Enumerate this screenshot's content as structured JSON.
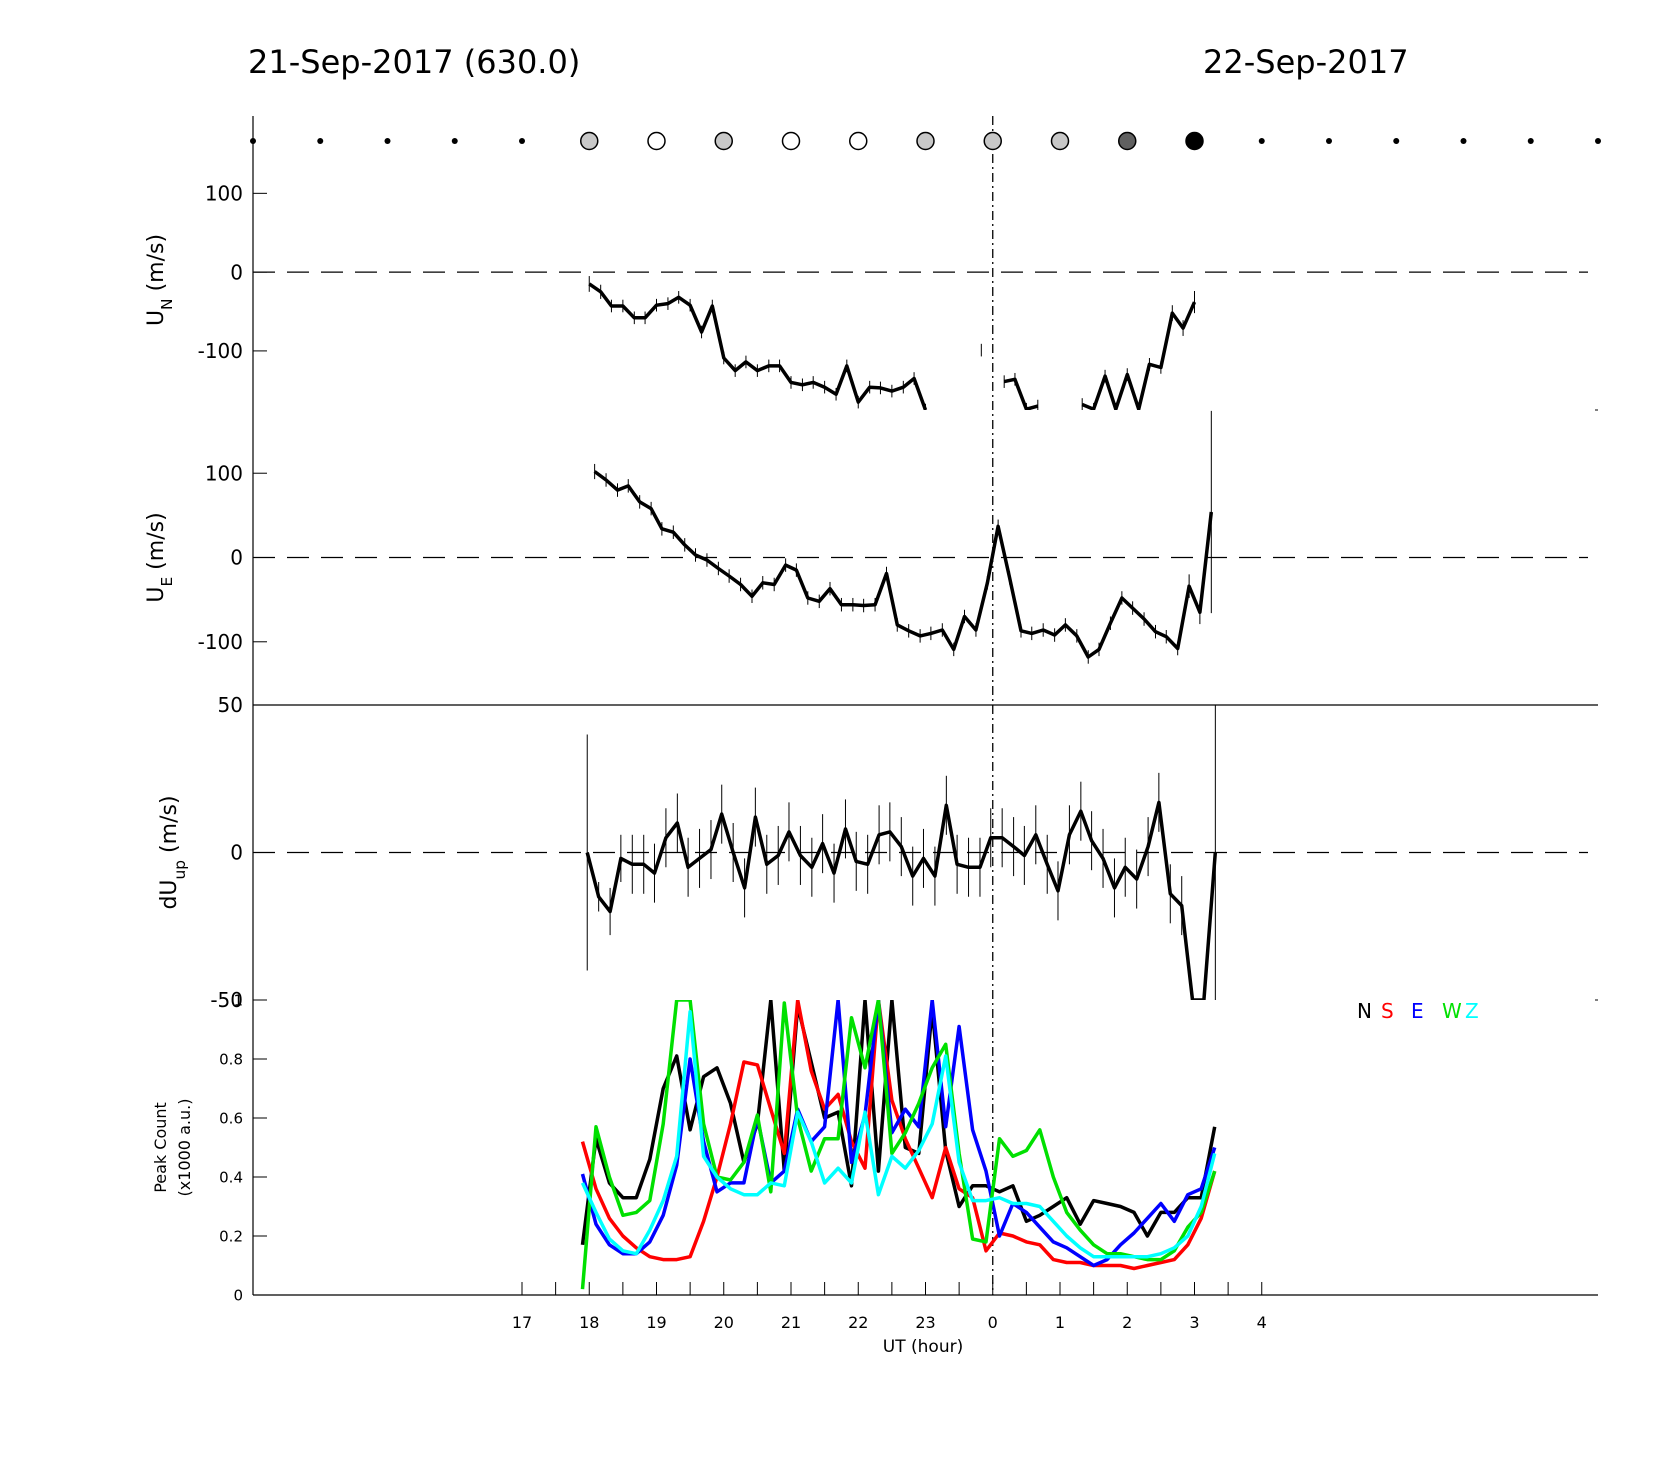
{
  "header": {
    "left_date": "21-Sep-2017 (630.0)",
    "right_date": "22-Sep-2017"
  },
  "colors": {
    "N": "#000000",
    "S": "#ff0000",
    "E": "#0000ff",
    "W": "#00e000",
    "Z": "#00ffff"
  },
  "chart_data": [
    {
      "type": "scatter",
      "title": "",
      "x_range": [
        13,
        33
      ],
      "moon_markers": [
        {
          "t": 13,
          "style": "dot"
        },
        {
          "t": 14,
          "style": "dot"
        },
        {
          "t": 15,
          "style": "dot"
        },
        {
          "t": 16,
          "style": "dot"
        },
        {
          "t": 17,
          "style": "dot"
        },
        {
          "t": 18,
          "style": "lightgray"
        },
        {
          "t": 19,
          "style": "white"
        },
        {
          "t": 20,
          "style": "lightgray"
        },
        {
          "t": 21,
          "style": "white"
        },
        {
          "t": 22,
          "style": "white"
        },
        {
          "t": 23,
          "style": "lightgray"
        },
        {
          "t": 24,
          "style": "lightgray"
        },
        {
          "t": 25,
          "style": "lightgray"
        },
        {
          "t": 26,
          "style": "darkgray"
        },
        {
          "t": 27,
          "style": "black"
        },
        {
          "t": 28,
          "style": "dot"
        },
        {
          "t": 29,
          "style": "dot"
        },
        {
          "t": 30,
          "style": "dot"
        },
        {
          "t": 31,
          "style": "dot"
        },
        {
          "t": 32,
          "style": "dot"
        },
        {
          "t": 33,
          "style": "dot"
        }
      ]
    },
    {
      "type": "line",
      "ylabel": "U",
      "ylabel_sub": "N",
      "ylabel_unit": " (m/s)",
      "ylim": [
        -175,
        155
      ],
      "yticks": [
        "100",
        "0",
        "-100"
      ],
      "ytick_values": [
        100,
        0,
        -100
      ],
      "x": [
        18.0,
        18.17,
        18.33,
        18.5,
        18.67,
        18.83,
        19.0,
        19.17,
        19.33,
        19.5,
        19.67,
        19.83,
        20.0,
        20.17,
        20.33,
        20.5,
        20.67,
        20.83,
        21.0,
        21.17,
        21.33,
        21.5,
        21.67,
        21.83,
        22.0,
        22.17,
        22.33,
        22.5,
        22.67,
        22.83,
        23.0,
        23.17,
        23.33,
        23.5,
        23.67,
        23.83,
        24.0,
        24.17,
        24.33,
        24.5,
        24.67,
        24.83,
        25.0,
        25.17,
        25.33,
        25.5,
        25.67,
        25.83,
        26.0,
        26.17,
        26.33,
        26.5,
        26.67,
        26.83,
        27.0,
        27.17
      ],
      "values": [
        -15,
        -25,
        -43,
        -43,
        -58,
        -58,
        -42,
        -40,
        -32,
        -42,
        -76,
        -43,
        -109,
        -125,
        -114,
        -125,
        -119,
        -119,
        -140,
        -143,
        -140,
        -146,
        -155,
        -119,
        -165,
        -146,
        -147,
        -151,
        -146,
        -135,
        -175,
        null,
        null,
        null,
        null,
        -99,
        null,
        -139,
        -136,
        -174,
        -170,
        null,
        null,
        null,
        -168,
        -174,
        -132,
        -174,
        -130,
        -174,
        -117,
        -121,
        -52,
        -71,
        -38,
        null
      ],
      "err": [
        10,
        9,
        8,
        8,
        8,
        8,
        8,
        8,
        8,
        8,
        8,
        8,
        8,
        8,
        8,
        8,
        8,
        8,
        8,
        8,
        8,
        8,
        8,
        8,
        8,
        8,
        8,
        8,
        8,
        8,
        8,
        0,
        0,
        0,
        0,
        8,
        0,
        8,
        8,
        8,
        8,
        0,
        0,
        0,
        8,
        8,
        8,
        8,
        8,
        8,
        8,
        8,
        10,
        10,
        14,
        0
      ]
    },
    {
      "type": "line",
      "ylabel": "U",
      "ylabel_sub": "E",
      "ylabel_unit": " (m/s)",
      "ylim": [
        -175,
        175
      ],
      "yticks": [
        "100",
        "0",
        "-100"
      ],
      "ytick_values": [
        100,
        0,
        -100
      ],
      "x": [
        18.08,
        18.25,
        18.42,
        18.58,
        18.75,
        18.92,
        19.08,
        19.25,
        19.42,
        19.58,
        19.75,
        19.92,
        20.08,
        20.25,
        20.42,
        20.58,
        20.75,
        20.92,
        21.08,
        21.25,
        21.42,
        21.58,
        21.75,
        21.92,
        22.08,
        22.25,
        22.42,
        22.58,
        22.75,
        22.92,
        23.08,
        23.25,
        23.42,
        23.58,
        23.75,
        23.92,
        24.08,
        24.25,
        24.42,
        24.58,
        24.75,
        24.92,
        25.08,
        25.25,
        25.42,
        25.58,
        25.75,
        25.92,
        26.08,
        26.25,
        26.42,
        26.58,
        26.75,
        26.92,
        27.08,
        27.25
      ],
      "values": [
        102,
        92,
        80,
        85,
        66,
        58,
        34,
        30,
        15,
        3,
        -3,
        -13,
        -22,
        -32,
        -46,
        -30,
        -32,
        -9,
        -15,
        -48,
        -52,
        -37,
        -56,
        -56,
        -57,
        -56,
        -19,
        -80,
        -87,
        -93,
        -90,
        -86,
        -109,
        -70,
        -86,
        -30,
        37,
        -24,
        -87,
        -90,
        -86,
        -92,
        -80,
        -93,
        -118,
        -109,
        -78,
        -48,
        -60,
        -73,
        -88,
        -94,
        -108,
        -34,
        -65,
        54
      ],
      "err": [
        9,
        8,
        8,
        8,
        8,
        8,
        8,
        8,
        8,
        8,
        8,
        8,
        8,
        8,
        8,
        8,
        8,
        8,
        8,
        8,
        8,
        8,
        8,
        8,
        8,
        8,
        8,
        8,
        8,
        8,
        8,
        8,
        8,
        8,
        8,
        8,
        8,
        8,
        8,
        8,
        8,
        8,
        8,
        8,
        8,
        8,
        8,
        8,
        8,
        8,
        8,
        8,
        8,
        14,
        14,
        120
      ]
    },
    {
      "type": "line",
      "ylabel": "dU",
      "ylabel_sub": "up",
      "ylabel_unit": " (m/s)",
      "ylim": [
        -50,
        50
      ],
      "yticks": [
        "50",
        "0",
        "-50"
      ],
      "ytick_values": [
        50,
        0,
        -50
      ],
      "x": [
        17.97,
        18.14,
        18.31,
        18.47,
        18.64,
        18.81,
        18.97,
        19.14,
        19.31,
        19.47,
        19.64,
        19.81,
        19.97,
        20.14,
        20.31,
        20.47,
        20.64,
        20.81,
        20.97,
        21.14,
        21.31,
        21.47,
        21.64,
        21.81,
        21.97,
        22.14,
        22.31,
        22.47,
        22.64,
        22.81,
        22.97,
        23.14,
        23.31,
        23.47,
        23.64,
        23.81,
        23.97,
        24.14,
        24.31,
        24.47,
        24.64,
        24.81,
        24.97,
        25.14,
        25.31,
        25.47,
        25.64,
        25.81,
        25.97,
        26.14,
        26.31,
        26.47,
        26.64,
        26.81,
        26.97,
        27.14,
        27.31
      ],
      "values": [
        0,
        -15,
        -20,
        -2,
        -4,
        -4,
        -7,
        5,
        10,
        -5,
        -2,
        1,
        13,
        0,
        -12,
        12,
        -4,
        -1,
        7,
        -1,
        -5,
        3,
        -7,
        8,
        -3,
        -4,
        6,
        7,
        2,
        -8,
        -2,
        -8,
        16,
        -4,
        -5,
        -5,
        5,
        5,
        2,
        -1,
        6,
        -4,
        -13,
        6,
        14,
        4,
        -2,
        -12,
        -5,
        -9,
        2,
        17,
        -14,
        -18,
        -50,
        -50,
        0
      ],
      "err": [
        40,
        5,
        8,
        8,
        10,
        10,
        10,
        10,
        10,
        10,
        10,
        10,
        10,
        10,
        10,
        10,
        10,
        10,
        10,
        10,
        10,
        10,
        10,
        10,
        10,
        10,
        10,
        10,
        10,
        10,
        10,
        10,
        10,
        10,
        10,
        10,
        10,
        10,
        10,
        10,
        10,
        10,
        10,
        10,
        10,
        10,
        10,
        10,
        10,
        10,
        10,
        10,
        10,
        10,
        0,
        0,
        50
      ]
    },
    {
      "type": "line",
      "ylabel": "Peak Count",
      "ylabel2": "(x1000 a.u.)",
      "ylim": [
        0,
        1.0
      ],
      "yticks": [
        "1",
        "0.8",
        "0.6",
        "0.4",
        "0.2",
        "0"
      ],
      "ytick_values": [
        1,
        0.8,
        0.6,
        0.4,
        0.2,
        0
      ],
      "xlabel": "UT (hour)",
      "xticks": [
        "17",
        "18",
        "19",
        "20",
        "21",
        "22",
        "23",
        "0",
        "1",
        "2",
        "3",
        "4"
      ],
      "xtick_values": [
        17,
        18,
        19,
        20,
        21,
        22,
        23,
        24,
        25,
        26,
        27,
        28
      ],
      "legend": [
        "N",
        "S",
        "E",
        "W",
        "Z"
      ],
      "legend_position": "top-right",
      "series": [
        {
          "key": "N",
          "x": [
            17.9,
            18.1,
            18.3,
            18.5,
            18.7,
            18.9,
            19.1,
            19.3,
            19.5,
            19.7,
            19.9,
            20.1,
            20.3,
            20.5,
            20.7,
            20.9,
            21.1,
            21.3,
            21.5,
            21.7,
            21.9,
            22.1,
            22.3,
            22.5,
            22.7,
            22.9,
            23.1,
            23.3,
            23.5,
            23.7,
            23.9,
            24.1,
            24.3,
            24.5,
            24.7,
            24.9,
            25.1,
            25.3,
            25.5,
            25.7,
            25.9,
            26.1,
            26.3,
            26.5,
            26.7,
            26.9,
            27.1,
            27.3
          ],
          "values": [
            0.17,
            0.53,
            0.38,
            0.33,
            0.33,
            0.46,
            0.7,
            0.81,
            0.56,
            0.74,
            0.77,
            0.65,
            0.45,
            0.58,
            1.0,
            0.42,
            0.98,
            0.79,
            0.6,
            0.62,
            0.37,
            1.0,
            0.42,
            1.0,
            0.5,
            0.48,
            0.97,
            0.49,
            0.3,
            0.37,
            0.37,
            0.35,
            0.37,
            0.25,
            0.27,
            0.3,
            0.33,
            0.24,
            0.32,
            0.31,
            0.3,
            0.28,
            0.2,
            0.28,
            0.28,
            0.33,
            0.33,
            0.57
          ]
        },
        {
          "key": "S",
          "x": [
            17.9,
            18.1,
            18.3,
            18.5,
            18.7,
            18.9,
            19.1,
            19.3,
            19.5,
            19.7,
            19.9,
            20.1,
            20.3,
            20.5,
            20.7,
            20.9,
            21.1,
            21.3,
            21.5,
            21.7,
            21.9,
            22.1,
            22.3,
            22.5,
            22.7,
            22.9,
            23.1,
            23.3,
            23.5,
            23.7,
            23.9,
            24.1,
            24.3,
            24.5,
            24.7,
            24.9,
            25.1,
            25.3,
            25.5,
            25.7,
            25.9,
            26.1,
            26.3,
            26.5,
            26.7,
            26.9,
            27.1,
            27.3
          ],
          "values": [
            0.52,
            0.36,
            0.26,
            0.2,
            0.16,
            0.13,
            0.12,
            0.12,
            0.13,
            0.25,
            0.4,
            0.58,
            0.79,
            0.78,
            0.63,
            0.48,
            1.0,
            0.76,
            0.63,
            0.68,
            0.52,
            0.43,
            1.0,
            0.66,
            0.53,
            0.43,
            0.33,
            0.5,
            0.36,
            0.33,
            0.15,
            0.21,
            0.2,
            0.18,
            0.17,
            0.12,
            0.11,
            0.11,
            0.1,
            0.1,
            0.1,
            0.09,
            0.1,
            0.11,
            0.12,
            0.17,
            0.26,
            0.42
          ]
        },
        {
          "key": "E",
          "x": [
            17.9,
            18.1,
            18.3,
            18.5,
            18.7,
            18.9,
            19.1,
            19.3,
            19.5,
            19.7,
            19.9,
            20.1,
            20.3,
            20.5,
            20.7,
            20.9,
            21.1,
            21.3,
            21.5,
            21.7,
            21.9,
            22.1,
            22.3,
            22.5,
            22.7,
            22.9,
            23.1,
            23.3,
            23.5,
            23.7,
            23.9,
            24.1,
            24.3,
            24.5,
            24.7,
            24.9,
            25.1,
            25.3,
            25.5,
            25.7,
            25.9,
            26.1,
            26.3,
            26.5,
            26.7,
            26.9,
            27.1,
            27.3
          ],
          "values": [
            0.41,
            0.24,
            0.17,
            0.14,
            0.14,
            0.18,
            0.27,
            0.44,
            0.8,
            0.52,
            0.35,
            0.38,
            0.38,
            0.6,
            0.38,
            0.42,
            0.63,
            0.52,
            0.57,
            1.0,
            0.45,
            0.61,
            1.0,
            0.55,
            0.63,
            0.57,
            1.0,
            0.57,
            0.91,
            0.56,
            0.42,
            0.2,
            0.31,
            0.28,
            0.23,
            0.18,
            0.16,
            0.13,
            0.1,
            0.12,
            0.17,
            0.21,
            0.26,
            0.31,
            0.25,
            0.34,
            0.36,
            0.5
          ]
        },
        {
          "key": "W",
          "x": [
            17.9,
            18.1,
            18.3,
            18.5,
            18.7,
            18.9,
            19.1,
            19.3,
            19.5,
            19.7,
            19.9,
            20.1,
            20.3,
            20.5,
            20.7,
            20.9,
            21.1,
            21.3,
            21.5,
            21.7,
            21.9,
            22.1,
            22.3,
            22.5,
            22.7,
            22.9,
            23.1,
            23.3,
            23.5,
            23.7,
            23.9,
            24.1,
            24.3,
            24.5,
            24.7,
            24.9,
            25.1,
            25.3,
            25.5,
            25.7,
            25.9,
            26.1,
            26.3,
            26.5,
            26.7,
            26.9,
            27.1,
            27.3
          ],
          "values": [
            0.02,
            0.57,
            0.4,
            0.27,
            0.28,
            0.32,
            0.58,
            1.0,
            1.0,
            0.58,
            0.4,
            0.39,
            0.45,
            0.61,
            0.35,
            0.99,
            0.6,
            0.42,
            0.53,
            0.53,
            0.94,
            0.77,
            1.0,
            0.48,
            0.55,
            0.65,
            0.77,
            0.85,
            0.48,
            0.19,
            0.18,
            0.53,
            0.47,
            0.49,
            0.56,
            0.4,
            0.28,
            0.22,
            0.17,
            0.14,
            0.14,
            0.13,
            0.12,
            0.12,
            0.15,
            0.23,
            0.28,
            0.42
          ]
        },
        {
          "key": "Z",
          "x": [
            17.9,
            18.1,
            18.3,
            18.5,
            18.7,
            18.9,
            19.1,
            19.3,
            19.5,
            19.7,
            19.9,
            20.1,
            20.3,
            20.5,
            20.7,
            20.9,
            21.1,
            21.3,
            21.5,
            21.7,
            21.9,
            22.1,
            22.3,
            22.5,
            22.7,
            22.9,
            23.1,
            23.3,
            23.5,
            23.7,
            23.9,
            24.1,
            24.3,
            24.5,
            24.7,
            24.9,
            25.1,
            25.3,
            25.5,
            25.7,
            25.9,
            26.1,
            26.3,
            26.5,
            26.7,
            26.9,
            27.1,
            27.3
          ],
          "values": [
            0.38,
            0.28,
            0.19,
            0.15,
            0.14,
            0.22,
            0.32,
            0.47,
            0.96,
            0.47,
            0.4,
            0.36,
            0.34,
            0.34,
            0.38,
            0.37,
            0.62,
            0.52,
            0.38,
            0.43,
            0.38,
            0.62,
            0.34,
            0.47,
            0.43,
            0.49,
            0.58,
            0.81,
            0.45,
            0.32,
            0.32,
            0.33,
            0.31,
            0.31,
            0.3,
            0.25,
            0.2,
            0.16,
            0.13,
            0.13,
            0.13,
            0.13,
            0.13,
            0.14,
            0.16,
            0.2,
            0.3,
            0.48
          ]
        }
      ]
    }
  ]
}
